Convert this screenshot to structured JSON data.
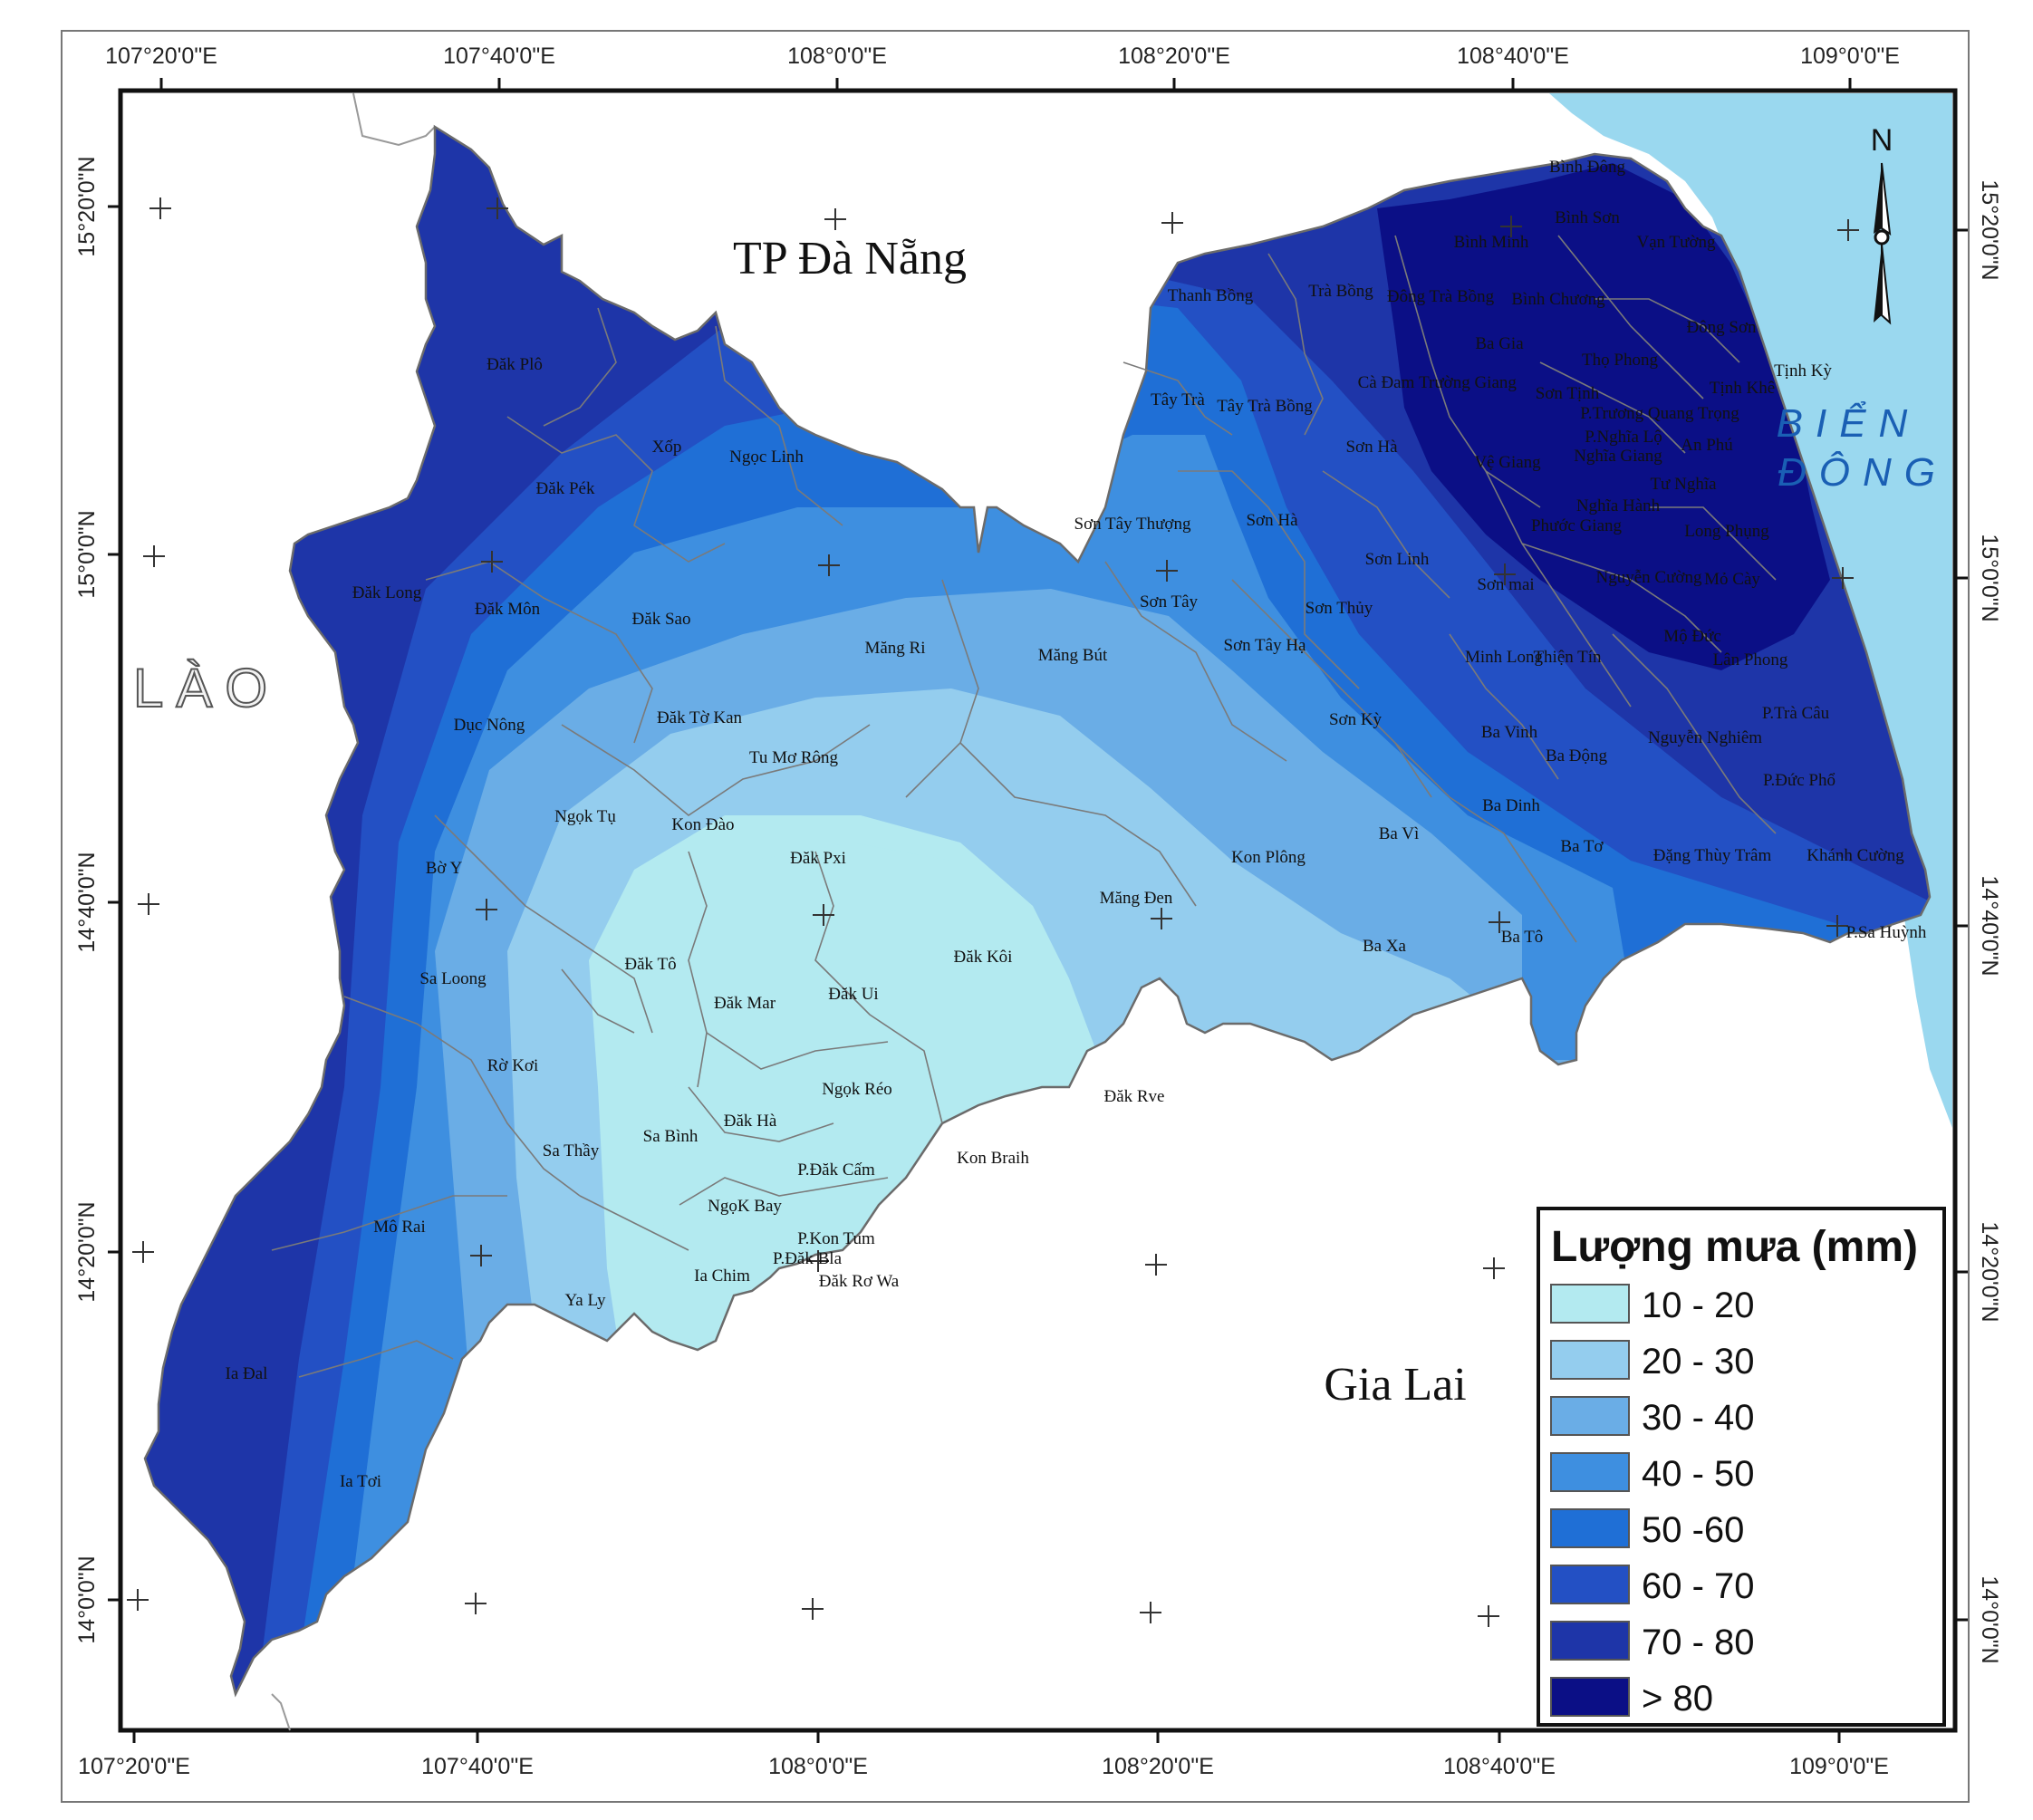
{
  "top_lon_labels": [
    "107°20'0\"E",
    "107°40'0\"E",
    "108°0'0\"E",
    "108°20'0\"E",
    "108°40'0\"E",
    "109°0'0\"E"
  ],
  "bottom_lon_labels": [
    "107°20'0\"E",
    "107°40'0\"E",
    "108°0'0\"E",
    "108°20'0\"E",
    "108°40'0\"E",
    "109°0'0\"E"
  ],
  "left_lat_labels": [
    "15°20'0\"N",
    "15°0'0\"N",
    "14°40'0\"N",
    "14°20'0\"N",
    "14°0'0\"N"
  ],
  "right_lat_labels": [
    "15°20'0\"N",
    "15°0'0\"N",
    "14°40'0\"N",
    "14°20'0\"N",
    "14°0'0\"N"
  ],
  "regions": {
    "da_nang": "TP Đà Nẵng",
    "gia_lai": "Gia Lai",
    "lao": "LÀO",
    "sea_line1": "BIỂN",
    "sea_line2": "ĐÔNG"
  },
  "north_label": "N",
  "legend": {
    "title": "Lượng mưa (mm)",
    "items": [
      {
        "label": "10 - 20",
        "color": "#b3eaf0"
      },
      {
        "label": "20 - 30",
        "color": "#94cdee"
      },
      {
        "label": "30 - 40",
        "color": "#6aade6"
      },
      {
        "label": "40 - 50",
        "color": "#3e8fe0"
      },
      {
        "label": "50 -60",
        "color": "#1f6fd6"
      },
      {
        "label": "60 - 70",
        "color": "#2350c4"
      },
      {
        "label": "70 - 80",
        "color": "#1e35a8"
      },
      {
        "label": "> 80",
        "color": "#0b0f86"
      }
    ]
  },
  "colors": {
    "sea": "#9ad8ef",
    "boundary": "#7a7a7a"
  },
  "communes": [
    "Bình Đông",
    "Bình Minh",
    "Bình Sơn",
    "Vạn Tường",
    "Thanh Bồng",
    "Trà Bồng",
    "Đông Trà Bồng",
    "Bình Chương",
    "Ba Gia",
    "Đông Sơn",
    "Thọ Phong",
    "Tịnh Kỳ",
    "Cà Đam",
    "Trường Giang",
    "Sơn Tịnh",
    "Tịnh Khê",
    "Tây Trà",
    "Tây Trà Bồng",
    "P.Trương Quang Trọng",
    "P.Nghĩa Lộ",
    "An Phú",
    "Sơn Hà",
    "Nghĩa Giang",
    "Vệ Giang",
    "Tư Nghĩa",
    "Nghĩa Hành",
    "Phước Giang",
    "Long Phụng",
    "Sơn Tây Thượng",
    "Sơn Hà",
    "Sơn Linh",
    "Sơn Tây",
    "Sơn Thủy",
    "Sơn mai",
    "Nguyễn Cường",
    "Mỏ Cày",
    "Mộ Đức",
    "Lân Phong",
    "Sơn Tây Hạ",
    "Minh Long",
    "Thiện Tín",
    "Sơn Kỳ",
    "P.Trà Câu",
    "Ba Vinh",
    "Nguyễn Nghiêm",
    "Ba Động",
    "P.Đức Phổ",
    "Ba Dinh",
    "Ba Vì",
    "Ba Tơ",
    "Đặng Thùy Trâm",
    "Khánh Cường",
    "Kon Plông",
    "Măng Đen",
    "Ba Xa",
    "Ba Tô",
    "P.Sa Huỳnh",
    "Đăk Plô",
    "Xốp",
    "Ngọc Linh",
    "Đăk Pék",
    "Đăk Long",
    "Đăk Môn",
    "Đăk Sao",
    "Măng Ri",
    "Măng Bút",
    "Dục Nông",
    "Đăk Tờ Kan",
    "Tu Mơ Rông",
    "Ngọk Tụ",
    "Kon Đào",
    "Đăk Pxi",
    "Bờ Y",
    "Đăk Tô",
    "Đăk Mar",
    "Đăk Ui",
    "Đăk Kôi",
    "Sa Loong",
    "Rờ Kơi",
    "Ngọk Réo",
    "Đăk Rve",
    "Sa Thầy",
    "Sa Bình",
    "Đăk Hà",
    "Kon Braih",
    "P.Đăk Cấm",
    "NgọK Bay",
    "P.Kon Tum",
    "P.Đăk Bla",
    "Mô Rai",
    "Ia Chim",
    "Đăk Rơ Wa",
    "Ya Ly",
    "Ia Đal",
    "Ia Tơi"
  ]
}
